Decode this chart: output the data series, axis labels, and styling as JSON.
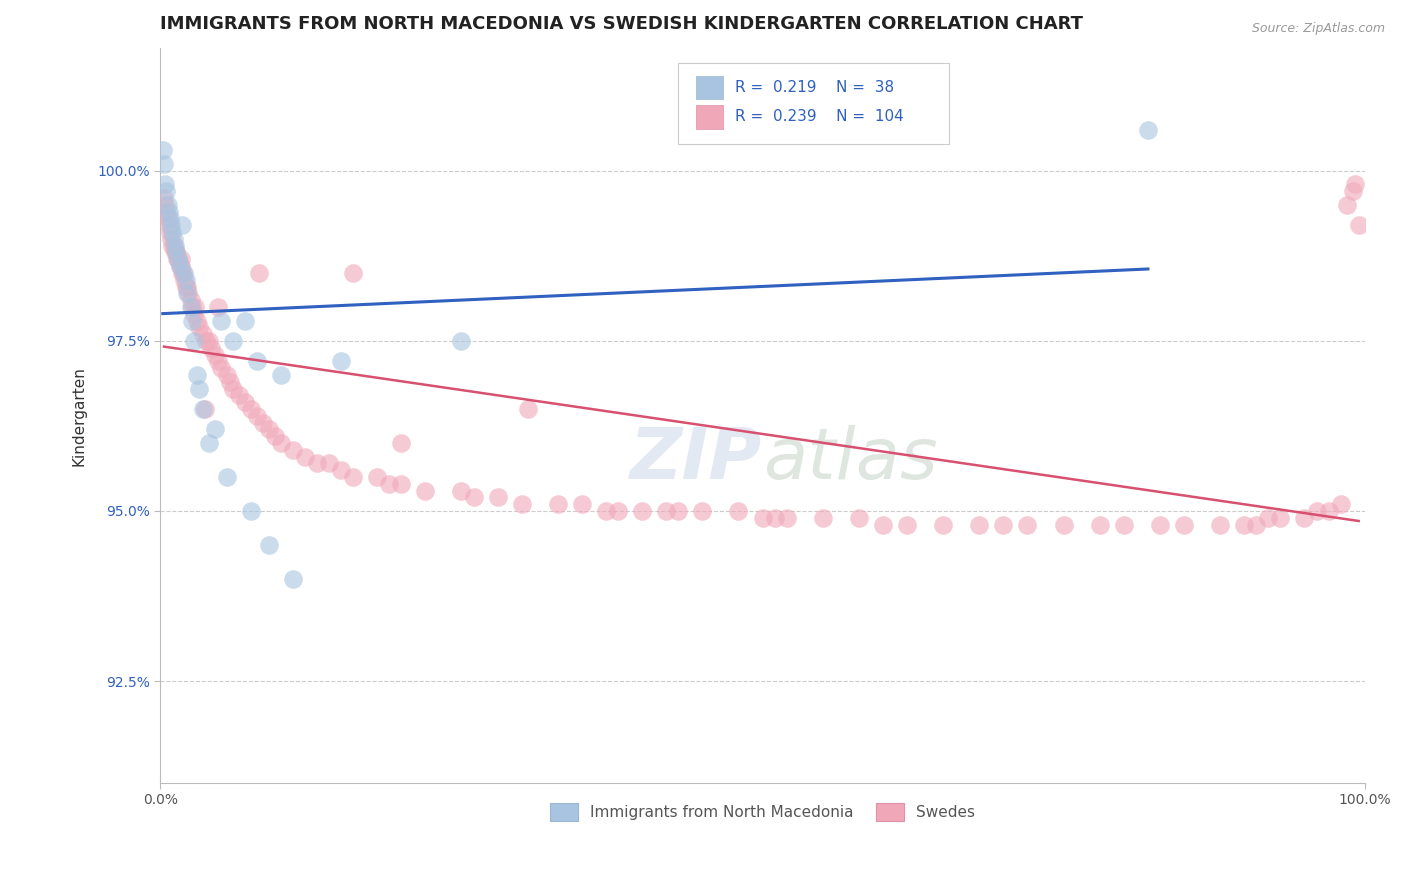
{
  "title": "IMMIGRANTS FROM NORTH MACEDONIA VS SWEDISH KINDERGARTEN CORRELATION CHART",
  "source": "Source: ZipAtlas.com",
  "ylabel": "Kindergarten",
  "xlim": [
    0.0,
    100.0
  ],
  "ylim": [
    91.0,
    101.8
  ],
  "yticks": [
    92.5,
    95.0,
    97.5,
    100.0
  ],
  "ytick_labels": [
    "92.5%",
    "95.0%",
    "97.5%",
    "100.0%"
  ],
  "xticks": [
    0.0,
    100.0
  ],
  "xtick_labels": [
    "0.0%",
    "100.0%"
  ],
  "legend_labels": [
    "Immigrants from North Macedonia",
    "Swedes"
  ],
  "R_blue": 0.219,
  "N_blue": 38,
  "R_pink": 0.239,
  "N_pink": 104,
  "blue_color": "#a8c4e0",
  "pink_color": "#f0a8b8",
  "blue_edge_color": "#7aaace",
  "pink_edge_color": "#e888a0",
  "blue_line_color": "#3060c0",
  "pink_line_color": "#d85070",
  "value_color": "#3060c0",
  "background_color": "#ffffff",
  "title_fontsize": 13,
  "axis_label_fontsize": 11,
  "tick_fontsize": 10,
  "legend_fontsize": 11,
  "blue_x": [
    0.2,
    0.3,
    0.4,
    0.5,
    0.6,
    0.7,
    0.8,
    0.9,
    1.0,
    1.1,
    1.2,
    1.3,
    1.5,
    1.6,
    1.8,
    2.0,
    2.1,
    2.2,
    2.5,
    2.6,
    2.8,
    3.0,
    3.2,
    3.5,
    4.0,
    4.5,
    5.0,
    5.5,
    6.0,
    7.0,
    7.5,
    8.0,
    9.0,
    10.0,
    11.0,
    15.0,
    25.0,
    82.0
  ],
  "blue_y": [
    100.3,
    100.1,
    99.8,
    99.7,
    99.5,
    99.4,
    99.3,
    99.2,
    99.1,
    99.0,
    98.9,
    98.8,
    98.7,
    98.6,
    99.2,
    98.5,
    98.4,
    98.2,
    98.0,
    97.8,
    97.5,
    97.0,
    96.8,
    96.5,
    96.0,
    96.2,
    97.8,
    95.5,
    97.5,
    97.8,
    95.0,
    97.2,
    94.5,
    97.0,
    94.0,
    97.2,
    97.5,
    100.6
  ],
  "pink_x": [
    0.3,
    0.4,
    0.5,
    0.6,
    0.7,
    0.8,
    0.9,
    1.0,
    1.1,
    1.2,
    1.3,
    1.4,
    1.5,
    1.6,
    1.7,
    1.8,
    1.9,
    2.0,
    2.1,
    2.2,
    2.3,
    2.5,
    2.6,
    2.8,
    3.0,
    3.2,
    3.5,
    3.8,
    4.0,
    4.2,
    4.5,
    4.8,
    5.0,
    5.5,
    5.8,
    6.0,
    6.5,
    7.0,
    7.5,
    8.0,
    8.5,
    9.0,
    9.5,
    10.0,
    11.0,
    12.0,
    13.0,
    14.0,
    15.0,
    16.0,
    18.0,
    19.0,
    20.0,
    22.0,
    25.0,
    26.0,
    28.0,
    30.0,
    33.0,
    35.0,
    37.0,
    38.0,
    40.0,
    42.0,
    43.0,
    45.0,
    48.0,
    50.0,
    51.0,
    52.0,
    55.0,
    58.0,
    60.0,
    62.0,
    65.0,
    68.0,
    70.0,
    72.0,
    75.0,
    78.0,
    80.0,
    83.0,
    85.0,
    88.0,
    90.0,
    91.0,
    92.0,
    93.0,
    95.0,
    96.0,
    97.0,
    98.0,
    98.5,
    99.0,
    99.2,
    99.5,
    1.7,
    2.9,
    3.7,
    4.8,
    8.2,
    16.0,
    20.0,
    30.5
  ],
  "pink_y": [
    99.6,
    99.5,
    99.4,
    99.3,
    99.2,
    99.1,
    99.0,
    98.9,
    98.9,
    98.8,
    98.8,
    98.7,
    98.7,
    98.6,
    98.6,
    98.5,
    98.5,
    98.4,
    98.3,
    98.3,
    98.2,
    98.1,
    98.0,
    97.9,
    97.8,
    97.7,
    97.6,
    97.5,
    97.5,
    97.4,
    97.3,
    97.2,
    97.1,
    97.0,
    96.9,
    96.8,
    96.7,
    96.6,
    96.5,
    96.4,
    96.3,
    96.2,
    96.1,
    96.0,
    95.9,
    95.8,
    95.7,
    95.7,
    95.6,
    95.5,
    95.5,
    95.4,
    95.4,
    95.3,
    95.3,
    95.2,
    95.2,
    95.1,
    95.1,
    95.1,
    95.0,
    95.0,
    95.0,
    95.0,
    95.0,
    95.0,
    95.0,
    94.9,
    94.9,
    94.9,
    94.9,
    94.9,
    94.8,
    94.8,
    94.8,
    94.8,
    94.8,
    94.8,
    94.8,
    94.8,
    94.8,
    94.8,
    94.8,
    94.8,
    94.8,
    94.8,
    94.9,
    94.9,
    94.9,
    95.0,
    95.0,
    95.1,
    99.5,
    99.7,
    99.8,
    99.2,
    98.7,
    98.0,
    96.5,
    98.0,
    98.5,
    98.5,
    96.0,
    96.5
  ]
}
